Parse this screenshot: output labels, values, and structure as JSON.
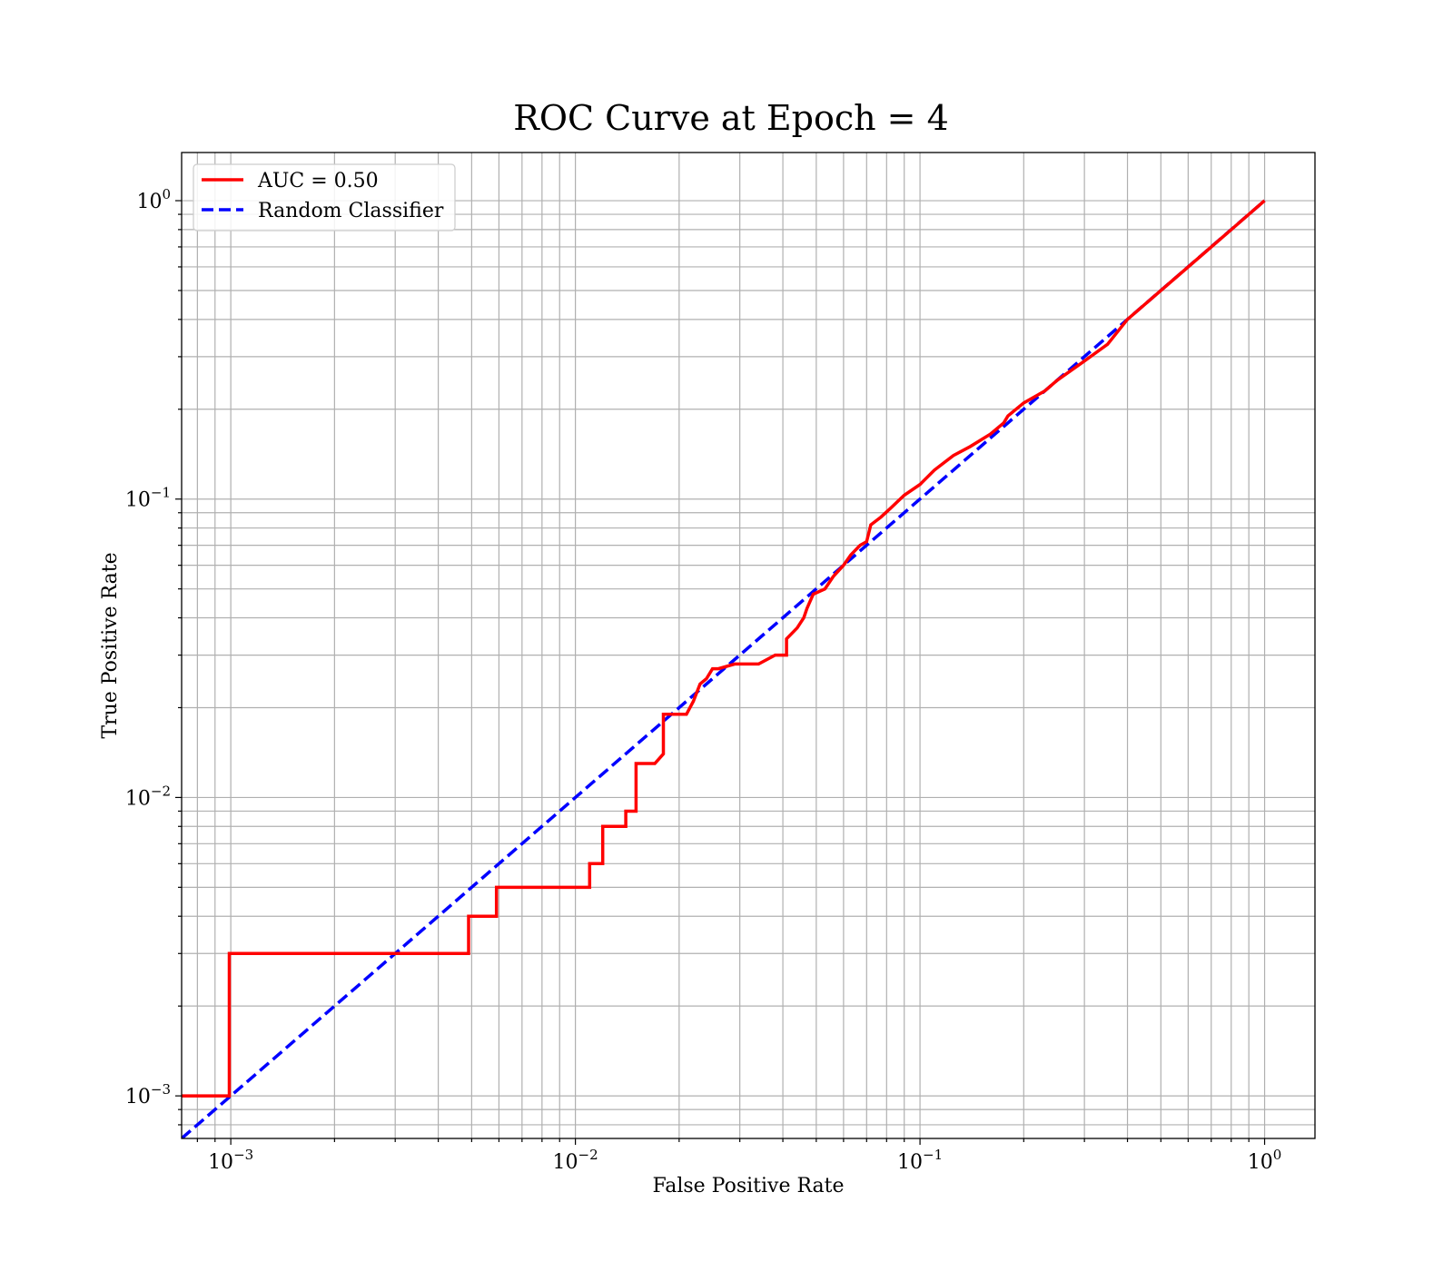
{
  "chart_data": {
    "type": "line",
    "title": "ROC Curve at Epoch = 4",
    "xlabel": "False Positive Rate",
    "ylabel": "True Positive Rate",
    "xscale": "log",
    "yscale": "log",
    "xlim": [
      0.00072,
      1.4
    ],
    "ylim": [
      0.00072,
      1.45
    ],
    "grid": "both (major and minor)",
    "legend_position": "top-left",
    "xticks": [
      {
        "value": 0.001,
        "base": "10",
        "exp": "−3"
      },
      {
        "value": 0.01,
        "base": "10",
        "exp": "−2"
      },
      {
        "value": 0.1,
        "base": "10",
        "exp": "−1"
      },
      {
        "value": 1,
        "base": "10",
        "exp": "0"
      }
    ],
    "yticks": [
      {
        "value": 0.001,
        "base": "10",
        "exp": "−3"
      },
      {
        "value": 0.01,
        "base": "10",
        "exp": "−2"
      },
      {
        "value": 0.1,
        "base": "10",
        "exp": "−1"
      },
      {
        "value": 1,
        "base": "10",
        "exp": "0"
      }
    ],
    "series": [
      {
        "name": "AUC = 0.50",
        "color": "#ff0000",
        "style": "solid",
        "x": [
          0.0007,
          0.00099,
          0.00099,
          0.0049,
          0.0049,
          0.0059,
          0.0059,
          0.011,
          0.011,
          0.012,
          0.012,
          0.014,
          0.014,
          0.015,
          0.015,
          0.017,
          0.018,
          0.018,
          0.021,
          0.022,
          0.023,
          0.024,
          0.025,
          0.026,
          0.029,
          0.034,
          0.038,
          0.041,
          0.041,
          0.044,
          0.046,
          0.047,
          0.049,
          0.053,
          0.056,
          0.06,
          0.063,
          0.067,
          0.07,
          0.072,
          0.077,
          0.082,
          0.09,
          0.1,
          0.11,
          0.125,
          0.14,
          0.16,
          0.175,
          0.18,
          0.2,
          0.23,
          0.25,
          0.3,
          0.35,
          0.4,
          0.5,
          0.6,
          0.7,
          0.8,
          0.9,
          1.0
        ],
        "y": [
          0.001,
          0.001,
          0.003,
          0.003,
          0.004,
          0.004,
          0.005,
          0.005,
          0.006,
          0.006,
          0.008,
          0.008,
          0.009,
          0.009,
          0.013,
          0.013,
          0.014,
          0.019,
          0.019,
          0.021,
          0.024,
          0.025,
          0.027,
          0.027,
          0.028,
          0.028,
          0.03,
          0.03,
          0.034,
          0.037,
          0.04,
          0.043,
          0.048,
          0.05,
          0.055,
          0.06,
          0.065,
          0.07,
          0.072,
          0.082,
          0.087,
          0.093,
          0.103,
          0.112,
          0.125,
          0.14,
          0.15,
          0.165,
          0.18,
          0.19,
          0.21,
          0.23,
          0.25,
          0.29,
          0.33,
          0.4,
          0.5,
          0.6,
          0.7,
          0.8,
          0.9,
          1.0
        ]
      },
      {
        "name": "Random Classifier",
        "color": "#0000ff",
        "style": "dashed",
        "x": [
          0.00072,
          1.0
        ],
        "y": [
          0.00072,
          1.0
        ]
      }
    ]
  }
}
